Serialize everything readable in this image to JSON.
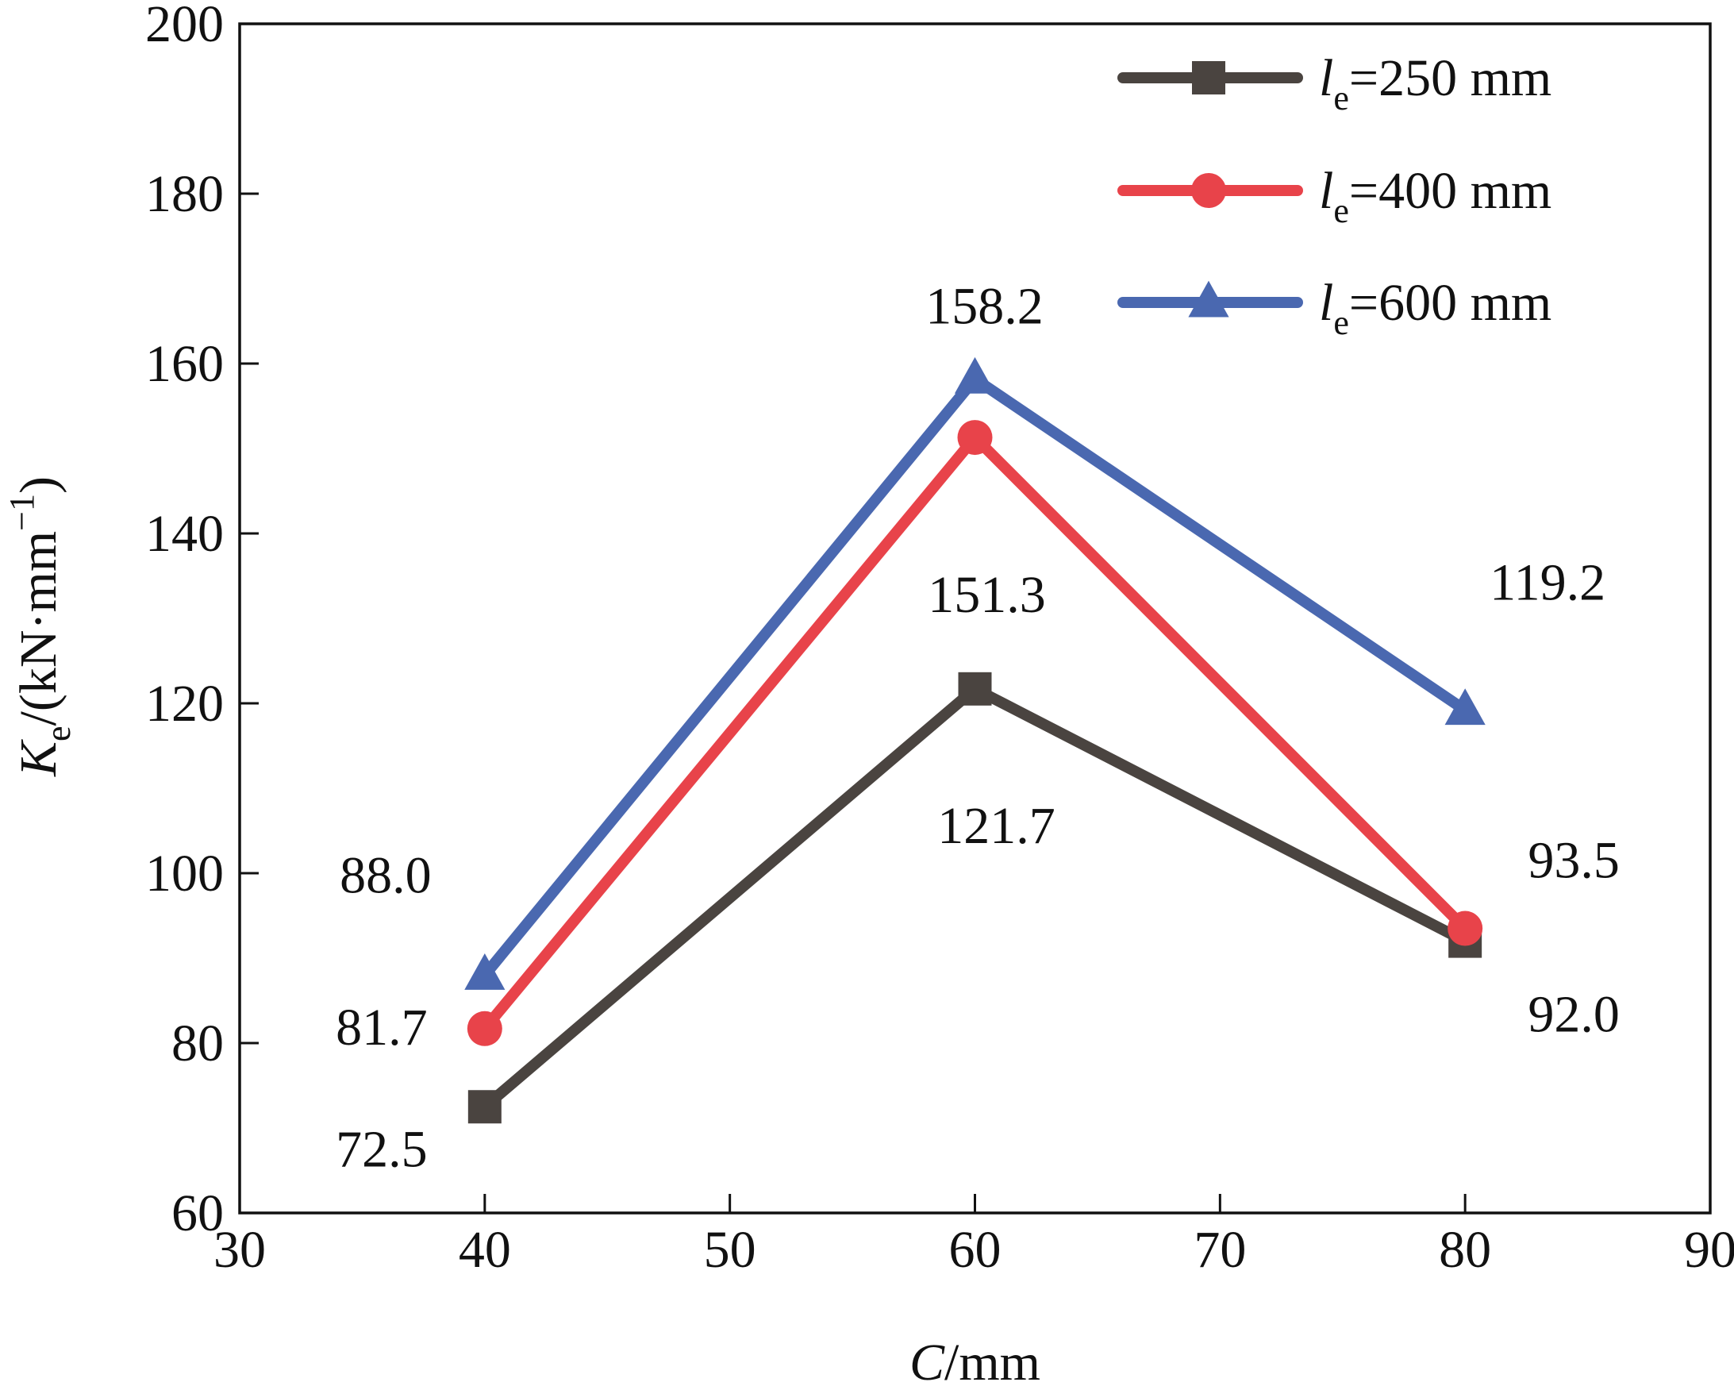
{
  "chart_data": {
    "type": "line",
    "xlabel": {
      "var": "C",
      "unit": "/mm"
    },
    "ylabel": {
      "var": "K",
      "sub": "e",
      "unit_main": "/(kN·mm",
      "unit_sup": "−1",
      "unit_close": ")"
    },
    "xlim": [
      30,
      90
    ],
    "ylim": [
      60,
      200
    ],
    "xticks": [
      30,
      40,
      50,
      60,
      70,
      80,
      90
    ],
    "yticks": [
      60,
      80,
      100,
      120,
      140,
      160,
      180,
      200
    ],
    "grid": false,
    "legend_position": "top-right",
    "x": [
      40,
      60,
      80
    ],
    "series": [
      {
        "legend": {
          "var": "l",
          "sub": "e",
          "rest": "=250 mm"
        },
        "color": "#4a4440",
        "marker": "square",
        "values": [
          72.5,
          121.7,
          92.0
        ],
        "labels": [
          "72.5",
          "121.7",
          "92.0"
        ]
      },
      {
        "legend": {
          "var": "l",
          "sub": "e",
          "rest": "=400 mm"
        },
        "color": "#e8434a",
        "marker": "circle",
        "values": [
          81.7,
          151.3,
          93.5
        ],
        "labels": [
          "81.7",
          "151.3",
          "93.5"
        ]
      },
      {
        "legend": {
          "var": "l",
          "sub": "e",
          "rest": "=600 mm"
        },
        "color": "#4a68b0",
        "marker": "triangle",
        "values": [
          88.0,
          158.2,
          119.2
        ],
        "labels": [
          "88.0",
          "158.2",
          "119.2"
        ]
      }
    ]
  }
}
